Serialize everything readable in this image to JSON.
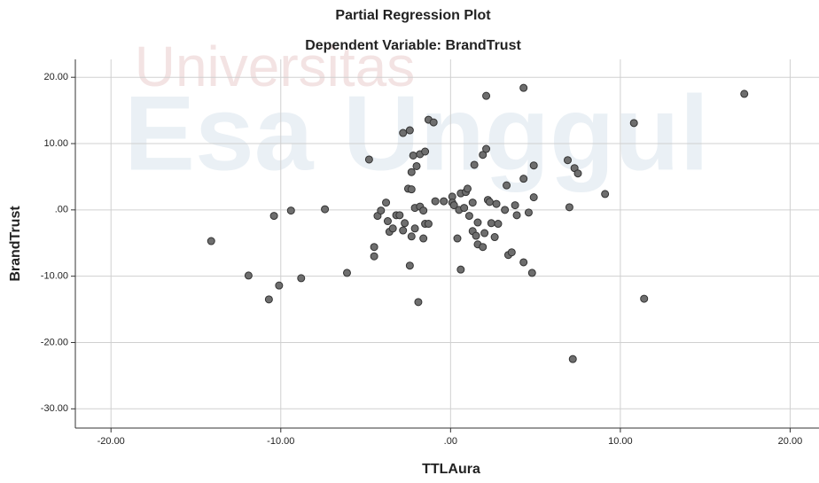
{
  "chart_data": {
    "type": "scatter",
    "title": "Partial Regression Plot",
    "subtitle": "Dependent Variable: BrandTrust",
    "xlabel": "TTLAura",
    "ylabel": "BrandTrust",
    "watermark": [
      "Universitas",
      "Esa Unggul"
    ],
    "color": "#6e6e6e",
    "grid": true,
    "xlim": [
      -22.1,
      21.7
    ],
    "ylim": [
      -32.9,
      22.7
    ],
    "xticks": [
      {
        "value": -20,
        "label": "-20.00"
      },
      {
        "value": -10,
        "label": "-10.00"
      },
      {
        "value": 0,
        "label": ".00"
      },
      {
        "value": 10,
        "label": "10.00"
      },
      {
        "value": 20,
        "label": "20.00"
      }
    ],
    "yticks": [
      {
        "value": 20,
        "label": "20.00"
      },
      {
        "value": 10,
        "label": "10.00"
      },
      {
        "value": 0,
        "label": ".00"
      },
      {
        "value": -10,
        "label": "-10.00"
      },
      {
        "value": -20,
        "label": "-20.00"
      },
      {
        "value": -30,
        "label": "-30.00"
      }
    ],
    "x": [
      -14.1,
      -11.9,
      -10.7,
      -10.4,
      -10.1,
      -9.4,
      -8.8,
      -7.4,
      -6.1,
      -4.8,
      -4.5,
      -4.5,
      -4.3,
      -4.1,
      -3.8,
      -3.7,
      -3.6,
      -3.4,
      -3.2,
      -3.0,
      -2.8,
      -2.8,
      -2.7,
      -2.5,
      -2.4,
      -2.4,
      -2.3,
      -2.3,
      -2.3,
      -2.2,
      -2.0,
      -2.1,
      -2.1,
      -1.9,
      -1.8,
      -1.8,
      -1.6,
      -1.6,
      -1.5,
      -1.5,
      -1.3,
      -1.3,
      -1.0,
      -0.9,
      -0.4,
      0.1,
      0.1,
      0.2,
      0.4,
      0.5,
      0.6,
      0.6,
      0.8,
      0.9,
      1.0,
      1.1,
      1.3,
      1.3,
      1.4,
      1.5,
      1.6,
      1.6,
      1.9,
      1.9,
      2.0,
      2.1,
      2.1,
      2.2,
      2.3,
      2.4,
      2.6,
      2.8,
      2.7,
      3.2,
      3.3,
      3.4,
      3.6,
      3.8,
      3.9,
      4.3,
      4.3,
      4.3,
      4.6,
      4.8,
      4.9,
      4.9,
      6.9,
      7.0,
      7.2,
      7.3,
      7.5,
      9.1,
      10.8,
      11.4,
      17.3
    ],
    "y": [
      -4.7,
      -9.9,
      -13.5,
      -0.9,
      -11.4,
      -0.1,
      -10.3,
      0.1,
      -9.5,
      7.6,
      -5.6,
      -7.0,
      -0.9,
      -0.1,
      1.1,
      -1.7,
      -3.3,
      -2.8,
      -0.8,
      -0.8,
      11.6,
      -3.1,
      -2.0,
      3.2,
      12.0,
      -8.4,
      5.7,
      3.1,
      -4.0,
      8.2,
      6.6,
      0.3,
      -2.8,
      -13.9,
      8.4,
      0.5,
      -0.1,
      -4.3,
      8.8,
      -2.1,
      -2.1,
      13.6,
      13.2,
      1.3,
      1.3,
      2.0,
      1.1,
      0.7,
      -4.3,
      0.0,
      2.5,
      -9.0,
      0.3,
      2.7,
      3.2,
      -0.9,
      1.1,
      -3.2,
      6.8,
      -3.9,
      -1.9,
      -5.2,
      -5.6,
      8.3,
      -3.5,
      17.2,
      9.2,
      1.5,
      1.2,
      -2.0,
      -4.1,
      -2.1,
      0.9,
      0.0,
      3.7,
      -6.8,
      -6.4,
      0.7,
      -0.8,
      4.7,
      -7.9,
      18.4,
      -0.4,
      -9.5,
      1.9,
      6.7,
      7.5,
      0.4,
      -22.5,
      6.3,
      5.5,
      2.4,
      13.1,
      -13.4,
      17.5
    ]
  }
}
